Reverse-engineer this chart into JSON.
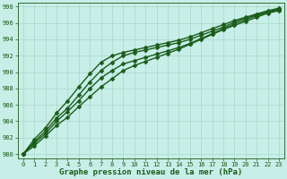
{
  "xlabel": "Graphe pression niveau de la mer (hPa)",
  "xlim": [
    -0.5,
    23.5
  ],
  "ylim": [
    979.5,
    998.5
  ],
  "yticks": [
    980,
    982,
    984,
    986,
    988,
    990,
    992,
    994,
    996,
    998
  ],
  "xticks": [
    0,
    1,
    2,
    3,
    4,
    5,
    6,
    7,
    8,
    9,
    10,
    11,
    12,
    13,
    14,
    15,
    16,
    17,
    18,
    19,
    20,
    21,
    22,
    23
  ],
  "bg_color": "#c8eee8",
  "grid_color": "#a8d8c8",
  "line_color": "#1a5c1a",
  "series": [
    [
      980.0,
      981.5,
      982.8,
      984.4,
      985.6,
      987.2,
      988.8,
      990.2,
      991.2,
      992.0,
      992.4,
      992.7,
      993.0,
      993.3,
      993.6,
      994.0,
      994.5,
      995.0,
      995.5,
      996.1,
      996.6,
      997.0,
      997.4,
      997.7
    ],
    [
      980.0,
      981.3,
      982.5,
      984.0,
      985.2,
      986.5,
      988.0,
      989.3,
      990.2,
      991.0,
      991.4,
      991.8,
      992.2,
      992.6,
      993.0,
      993.5,
      994.1,
      994.7,
      995.3,
      995.9,
      996.4,
      996.9,
      997.3,
      997.6
    ],
    [
      980.0,
      981.0,
      982.2,
      983.5,
      984.5,
      985.8,
      987.0,
      988.2,
      989.2,
      990.2,
      990.8,
      991.3,
      991.8,
      992.3,
      992.8,
      993.4,
      994.0,
      994.6,
      995.2,
      995.7,
      996.2,
      996.7,
      997.2,
      997.5
    ],
    [
      980.0,
      981.8,
      983.2,
      985.0,
      986.5,
      988.2,
      989.8,
      991.2,
      992.0,
      992.4,
      992.7,
      993.0,
      993.3,
      993.6,
      993.9,
      994.3,
      994.8,
      995.3,
      995.8,
      996.3,
      996.7,
      997.1,
      997.5,
      997.8
    ]
  ],
  "marker": "D",
  "marker_size": 2.5,
  "linewidth": 1.0,
  "tick_fontsize": 5.0,
  "xlabel_fontsize": 6.5,
  "tick_color": "#1a5c1a",
  "axis_color": "#1a5c1a"
}
